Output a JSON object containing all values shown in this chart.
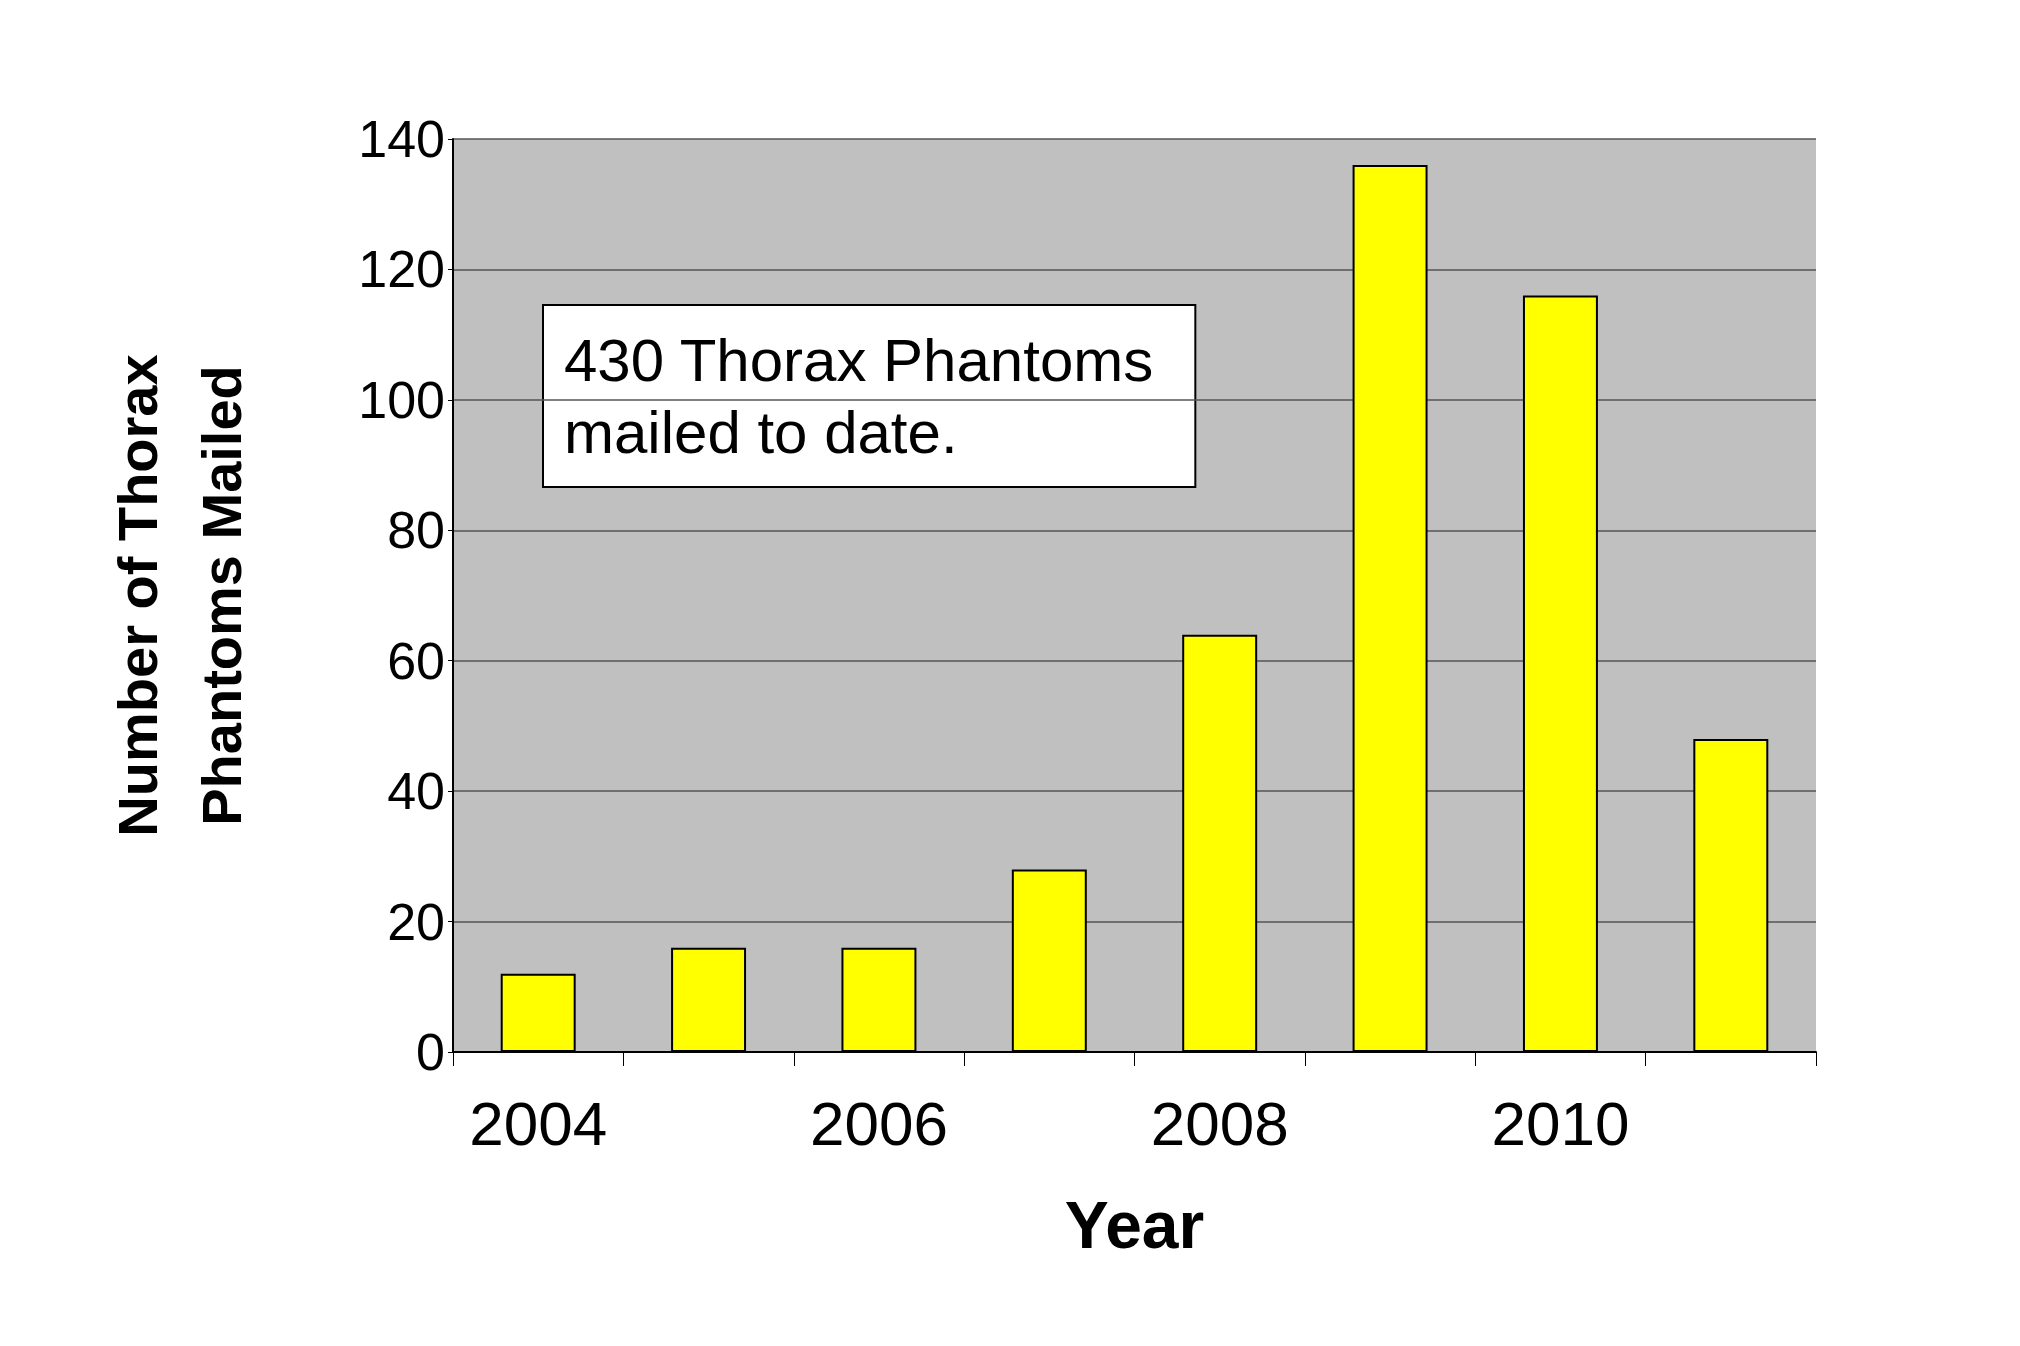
{
  "chart_data": {
    "type": "bar",
    "xlabel": "Year",
    "ylabel": "Number of Thorax\nPhantoms Mailed",
    "categories": [
      "2004",
      null,
      "2006",
      null,
      "2008",
      null,
      "2010",
      null
    ],
    "values": [
      12,
      16,
      16,
      28,
      64,
      136,
      116,
      48
    ],
    "color": "#ffff00",
    "ylim": [
      0,
      140
    ],
    "yticks": [
      0,
      20,
      40,
      60,
      80,
      100,
      120,
      140
    ],
    "grid": "y",
    "annotations": [
      "430 Thorax Phantoms\nmailed to date."
    ]
  }
}
